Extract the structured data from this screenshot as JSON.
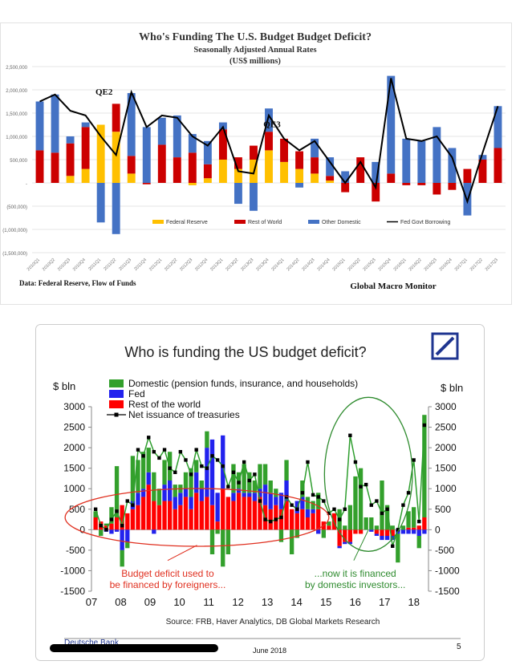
{
  "chart_data": [
    {
      "type": "bar",
      "title": "Who's Funding The U.S. Budget Budget Deficit?",
      "subtitle": "Seasonally Adjusted Annual Rates",
      "unit_line": "(US$ millions)",
      "source": "Data: Federal Reserve, Flow of Funds",
      "branding": "Global Macro Monitor",
      "ylim": [
        -1500000,
        2500000
      ],
      "y_ticks": [
        "2,500,000",
        "2,000,000",
        "1,500,000",
        "1,000,000",
        "500,000",
        "-",
        "(500,000)",
        "(1,000,000)",
        "(1,500,000)"
      ],
      "y_tick_values": [
        2500000,
        2000000,
        1500000,
        1000000,
        500000,
        0,
        -500000,
        -1000000,
        -1500000
      ],
      "annotations": [
        {
          "text": "QE2",
          "x": "2011Q1",
          "y": 1900000
        },
        {
          "text": "QE3",
          "x": "2013Q4",
          "y": 1200000
        }
      ],
      "categories": [
        "2010Q1",
        "2010Q2",
        "2010Q3",
        "2010Q4",
        "2011Q1",
        "2011Q2",
        "2011Q3",
        "2011Q4",
        "2012Q1",
        "2012Q2",
        "2012Q3",
        "2012Q4",
        "2013Q1",
        "2013Q2",
        "2013Q3",
        "2013Q4",
        "2014Q1",
        "2014Q2",
        "2014Q3",
        "2014Q4",
        "2015Q1",
        "2015Q2",
        "2015Q3",
        "2015Q4",
        "2016Q1",
        "2016Q2",
        "2016Q3",
        "2016Q4",
        "2017Q1",
        "2017Q2",
        "2017Q3"
      ],
      "series": [
        {
          "name": "Federal Reserve",
          "color": "#ffc000",
          "values": [
            0,
            0,
            150,
            300,
            1250,
            1100,
            200,
            0,
            0,
            0,
            -50,
            100,
            500,
            300,
            500,
            700,
            450,
            300,
            200,
            50,
            0,
            0,
            0,
            0,
            0,
            0,
            0,
            0,
            0,
            0,
            0
          ]
        },
        {
          "name": "Rest of World",
          "color": "#cc0000",
          "values": [
            700,
            650,
            700,
            900,
            0,
            600,
            380,
            -30,
            820,
            550,
            650,
            300,
            650,
            250,
            300,
            400,
            500,
            380,
            350,
            100,
            -200,
            550,
            -400,
            200,
            -50,
            -50,
            -250,
            -150,
            300,
            500,
            750
          ]
        },
        {
          "name": "Other Domestic",
          "color": "#4472c4",
          "values": [
            1050,
            1250,
            150,
            100,
            -850,
            -1100,
            1350,
            1200,
            580,
            900,
            400,
            500,
            150,
            -450,
            -600,
            500,
            0,
            -100,
            400,
            400,
            250,
            0,
            450,
            2100,
            950,
            900,
            1200,
            750,
            -700,
            100,
            900
          ]
        }
      ],
      "line": {
        "name": "Fed Govt Borrowing",
        "color": "#000000",
        "values": [
          1750,
          1900,
          1550,
          1450,
          1000,
          600,
          1950,
          1200,
          1450,
          1400,
          1000,
          800,
          1200,
          250,
          200,
          1450,
          950,
          700,
          900,
          450,
          0,
          450,
          -100,
          2250,
          950,
          900,
          1000,
          550,
          -400,
          650,
          1650
        ]
      },
      "legend": [
        "Federal Reserve",
        "Rest of World",
        "Other Domestic",
        "Fed Govt Borrowing"
      ]
    },
    {
      "type": "bar",
      "title": "Who is funding the US budget deficit?",
      "ylabel_left": "$ bln",
      "ylabel_right": "$ bln",
      "ylim": [
        -1500,
        3000
      ],
      "y_ticks": [
        3000,
        2500,
        2000,
        1500,
        1000,
        500,
        0,
        -500,
        -1000,
        -1500
      ],
      "x_tick_labels": [
        "07",
        "08",
        "09",
        "10",
        "11",
        "12",
        "13",
        "14",
        "15",
        "16",
        "17",
        "18"
      ],
      "x_range": [
        2007,
        2018.5
      ],
      "legend": [
        "Domestic (pension funds, insurance, and households)",
        "Fed",
        "Rest of the world",
        "Net issuance of treasuries"
      ],
      "series": [
        {
          "name": "Domestic (pension funds, insurance, and households)",
          "color": "#33a02c",
          "values": [
            150,
            -150,
            50,
            400,
            1250,
            -400,
            -150,
            1100,
            800,
            900,
            600,
            700,
            400,
            600,
            700,
            300,
            200,
            400,
            700,
            300,
            200,
            400,
            -600,
            -100,
            -900,
            -600,
            700,
            400,
            700,
            500,
            300,
            600,
            500,
            300,
            200,
            -300,
            500,
            -600,
            -200,
            400,
            300,
            200,
            400,
            -200,
            100,
            0,
            500,
            100,
            600,
            1300,
            1500,
            300,
            300,
            100,
            1200,
            600,
            100,
            -700,
            100,
            400,
            500,
            -300,
            2500
          ]
        },
        {
          "name": "Fed",
          "color": "#2222ee",
          "values": [
            0,
            0,
            -50,
            -100,
            -50,
            -500,
            -300,
            200,
            300,
            200,
            300,
            -100,
            0,
            400,
            500,
            300,
            300,
            200,
            300,
            500,
            300,
            1200,
            1600,
            700,
            1300,
            0,
            200,
            100,
            100,
            100,
            200,
            200,
            500,
            400,
            200,
            400,
            500,
            0,
            300,
            300,
            200,
            100,
            -100,
            0,
            0,
            0,
            -50,
            -50,
            -50,
            0,
            0,
            0,
            -50,
            -50,
            -100,
            -100,
            -100,
            -100,
            -100,
            -100,
            -100,
            -150,
            -100
          ]
        },
        {
          "name": "Rest of the world",
          "color": "#ff0000",
          "values": [
            300,
            200,
            100,
            150,
            300,
            600,
            400,
            500,
            600,
            800,
            1100,
            700,
            600,
            700,
            700,
            500,
            600,
            800,
            500,
            900,
            700,
            800,
            600,
            200,
            1000,
            800,
            700,
            900,
            800,
            800,
            700,
            800,
            600,
            500,
            600,
            500,
            700,
            500,
            400,
            500,
            300,
            400,
            500,
            200,
            100,
            400,
            -400,
            -300,
            -300,
            -100,
            -100,
            0,
            0,
            -100,
            -150,
            -150,
            -150,
            0,
            0,
            50,
            50,
            100,
            300
          ]
        }
      ],
      "line": {
        "name": "Net issuance of treasuries",
        "color": "#2e9e2e",
        "values": [
          500,
          100,
          0,
          250,
          450,
          100,
          700,
          600,
          1950,
          1800,
          2250,
          1900,
          1750,
          1950,
          1500,
          1400,
          1900,
          1700,
          1350,
          1950,
          1550,
          1500,
          1800,
          1700,
          1550,
          1050,
          1400,
          1150,
          1650,
          1200,
          1350,
          700,
          250,
          200,
          250,
          300,
          800,
          600,
          500,
          900,
          1650,
          850,
          800,
          700,
          400,
          500,
          250,
          500,
          2300,
          1650,
          1050,
          1100,
          600,
          700,
          400,
          500,
          -400,
          0,
          600,
          900,
          1700,
          200,
          2550
        ]
      },
      "annotations": [
        {
          "text": "Budget deficit used to\nbe financed by foreigners...",
          "color": "#e03020"
        },
        {
          "text": "...now it is financed\nby domestic investors...",
          "color": "#2e8b2e"
        }
      ],
      "source": "Source: FRB, Haver Analytics, DB Global Markets Research",
      "footer_left": "Deutsche Bank",
      "footer_center": "June 2018",
      "page_number": "5"
    }
  ]
}
